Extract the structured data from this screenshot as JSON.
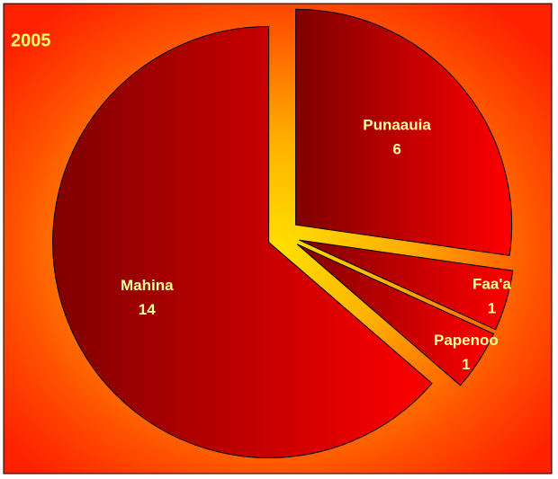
{
  "chart_data": {
    "type": "pie",
    "title": "2005",
    "categories": [
      "Punaauia",
      "Faa'a",
      "Papenoo",
      "Mahina"
    ],
    "values": [
      6,
      1,
      1,
      14
    ],
    "colors": [
      "#ff0000",
      "#ff0000",
      "#ff0000",
      "#ff0000"
    ]
  }
}
